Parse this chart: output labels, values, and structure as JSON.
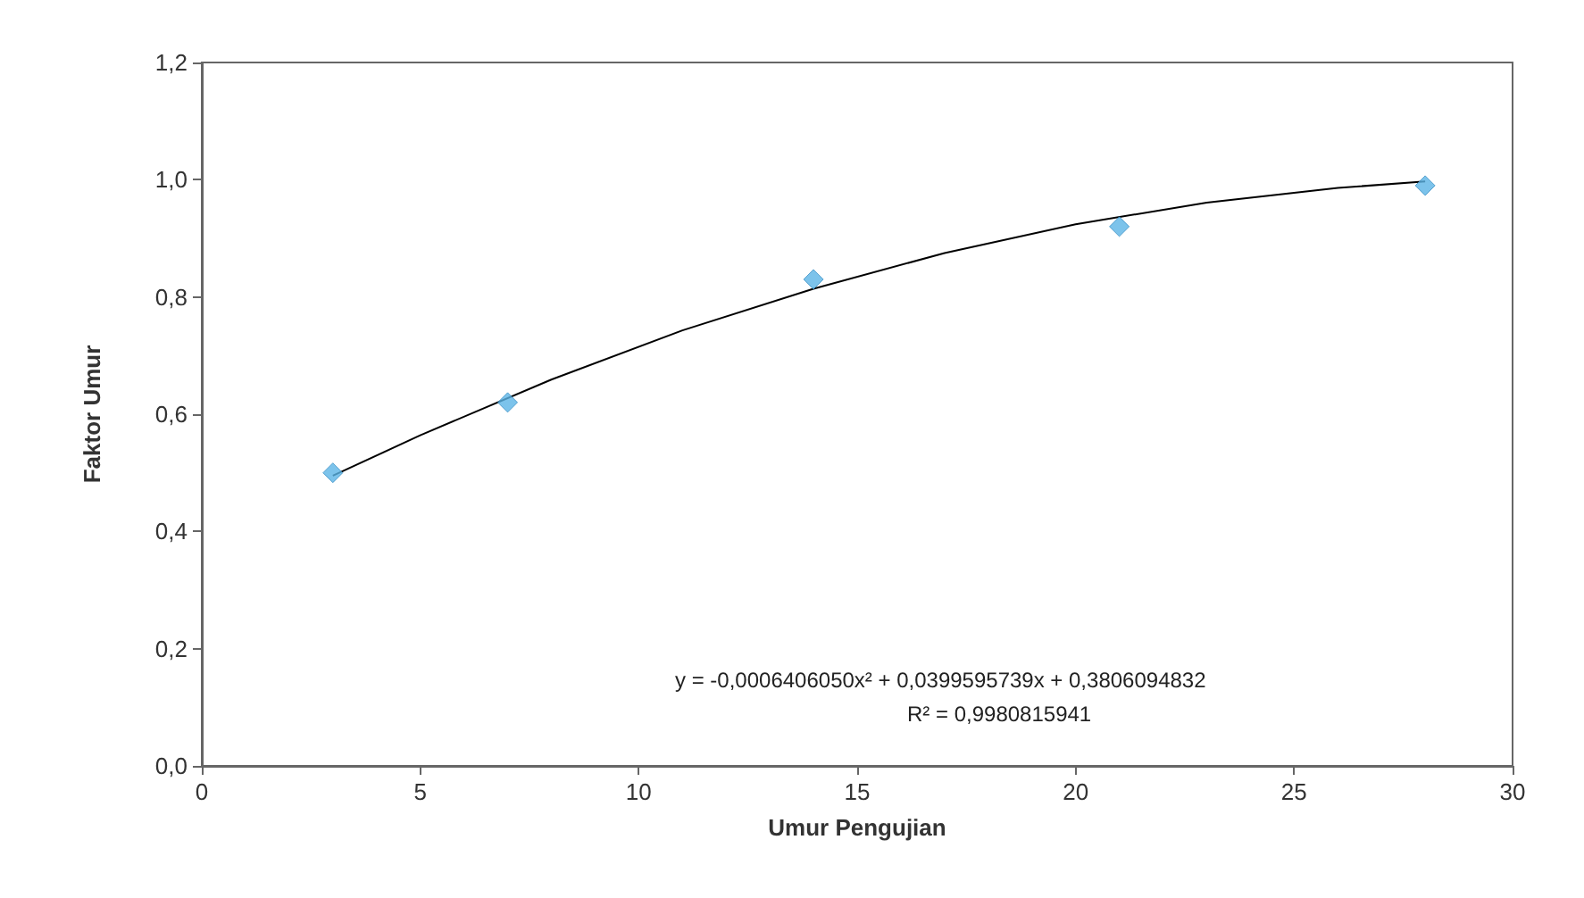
{
  "chart_data": {
    "type": "scatter",
    "xlabel": "Umur Pengujian",
    "ylabel": "Faktor Umur",
    "xlim": [
      0,
      30
    ],
    "xticks": [
      0,
      5,
      10,
      15,
      20,
      25,
      30
    ],
    "ylim": [
      0,
      1.2
    ],
    "yticks": [
      {
        "value": 0,
        "label": "0,0"
      },
      {
        "value": 0.2,
        "label": "0,2"
      },
      {
        "value": 0.4,
        "label": "0,4"
      },
      {
        "value": 0.6,
        "label": "0,6"
      },
      {
        "value": 0.8,
        "label": "0,8"
      },
      {
        "value": 1.0,
        "label": "1,0"
      },
      {
        "value": 1.2,
        "label": "1,2"
      }
    ],
    "x": [
      3,
      7,
      14,
      21,
      28
    ],
    "series": [
      {
        "color": "#5bb4e6",
        "marker": "diamond",
        "values": [
          0.5,
          0.62,
          0.83,
          0.92,
          0.99
        ]
      },
      {
        "type": "line",
        "color": "#000000",
        "marker": "none",
        "line_style": "solid",
        "x": [
          3,
          5,
          8,
          11,
          14,
          17,
          20,
          23,
          26,
          28
        ],
        "values": [
          0.495,
          0.564,
          0.659,
          0.743,
          0.814,
          0.875,
          0.924,
          0.961,
          0.986,
          0.997
        ]
      }
    ],
    "annotations": [
      "y = -0,0006406050x² + 0,0399595739x + 0,3806094832",
      "R² = 0,9980815941"
    ],
    "grid": false
  }
}
